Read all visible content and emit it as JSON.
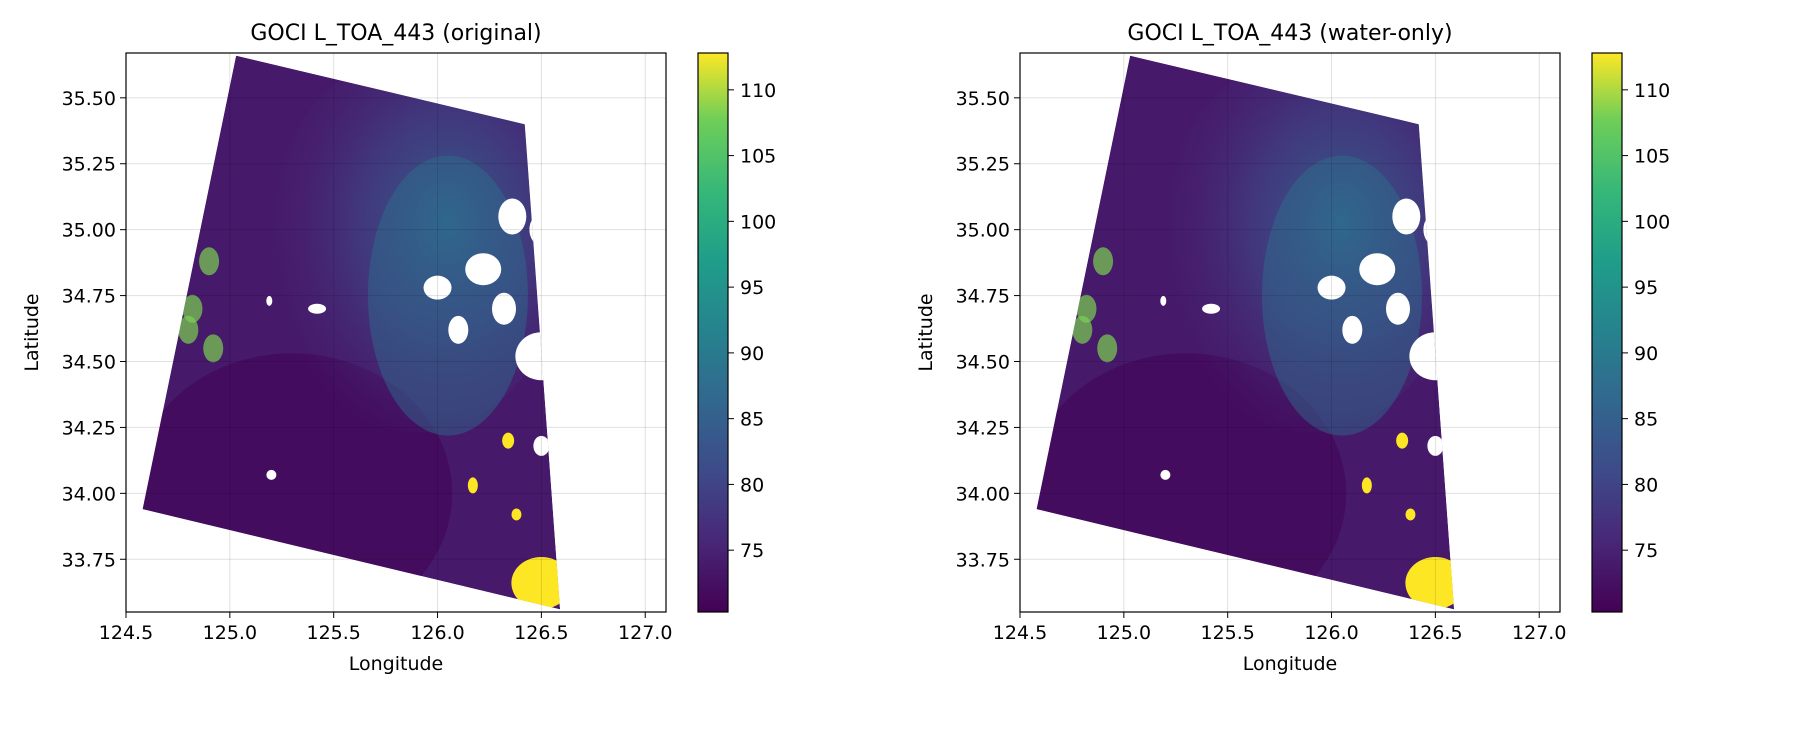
{
  "panels": [
    {
      "title": "GOCI L_TOA_443 (original)",
      "xlabel": "Longitude",
      "ylabel": "Latitude"
    },
    {
      "title": "GOCI L_TOA_443 (water-only)",
      "xlabel": "Longitude",
      "ylabel": "Latitude"
    }
  ],
  "chart_data": [
    {
      "type": "heatmap",
      "title": "GOCI L_TOA_443 (original)",
      "xlabel": "Longitude",
      "ylabel": "Latitude",
      "xlim": [
        124.5,
        127.1
      ],
      "ylim": [
        33.55,
        35.67
      ],
      "xticks": [
        124.5,
        125.0,
        125.5,
        126.0,
        126.5,
        127.0
      ],
      "xtick_labels": [
        "124.5",
        "125.0",
        "125.5",
        "126.0",
        "126.5",
        "127.0"
      ],
      "yticks": [
        33.75,
        34.0,
        34.25,
        34.5,
        34.75,
        35.0,
        35.25,
        35.5
      ],
      "ytick_labels": [
        "33.75",
        "34.00",
        "34.25",
        "34.50",
        "34.75",
        "35.00",
        "35.25",
        "35.50"
      ],
      "grid": true,
      "colormap": "viridis",
      "colorbar_range": [
        70.3,
        112.8
      ],
      "colorbar_ticks": [
        75,
        80,
        85,
        90,
        95,
        100,
        105,
        110
      ],
      "image_corners": [
        [
          125.03,
          35.66
        ],
        [
          126.42,
          35.4
        ],
        [
          126.59,
          33.56
        ],
        [
          124.58,
          33.94
        ]
      ]
    },
    {
      "type": "heatmap",
      "title": "GOCI L_TOA_443 (water-only)",
      "xlabel": "Longitude",
      "ylabel": "Latitude",
      "xlim": [
        124.5,
        127.1
      ],
      "ylim": [
        33.55,
        35.67
      ],
      "xticks": [
        124.5,
        125.0,
        125.5,
        126.0,
        126.5,
        127.0
      ],
      "xtick_labels": [
        "124.5",
        "125.0",
        "125.5",
        "126.0",
        "126.5",
        "127.0"
      ],
      "yticks": [
        33.75,
        34.0,
        34.25,
        34.5,
        34.75,
        35.0,
        35.25,
        35.5
      ],
      "ytick_labels": [
        "33.75",
        "34.00",
        "34.25",
        "34.50",
        "34.75",
        "35.00",
        "35.25",
        "35.50"
      ],
      "grid": true,
      "colormap": "viridis",
      "colorbar_range": [
        70.3,
        112.8
      ],
      "colorbar_ticks": [
        75,
        80,
        85,
        90,
        95,
        100,
        105,
        110
      ],
      "image_corners": [
        [
          125.03,
          35.66
        ],
        [
          126.42,
          35.4
        ],
        [
          126.59,
          33.56
        ],
        [
          124.58,
          33.94
        ]
      ]
    }
  ]
}
